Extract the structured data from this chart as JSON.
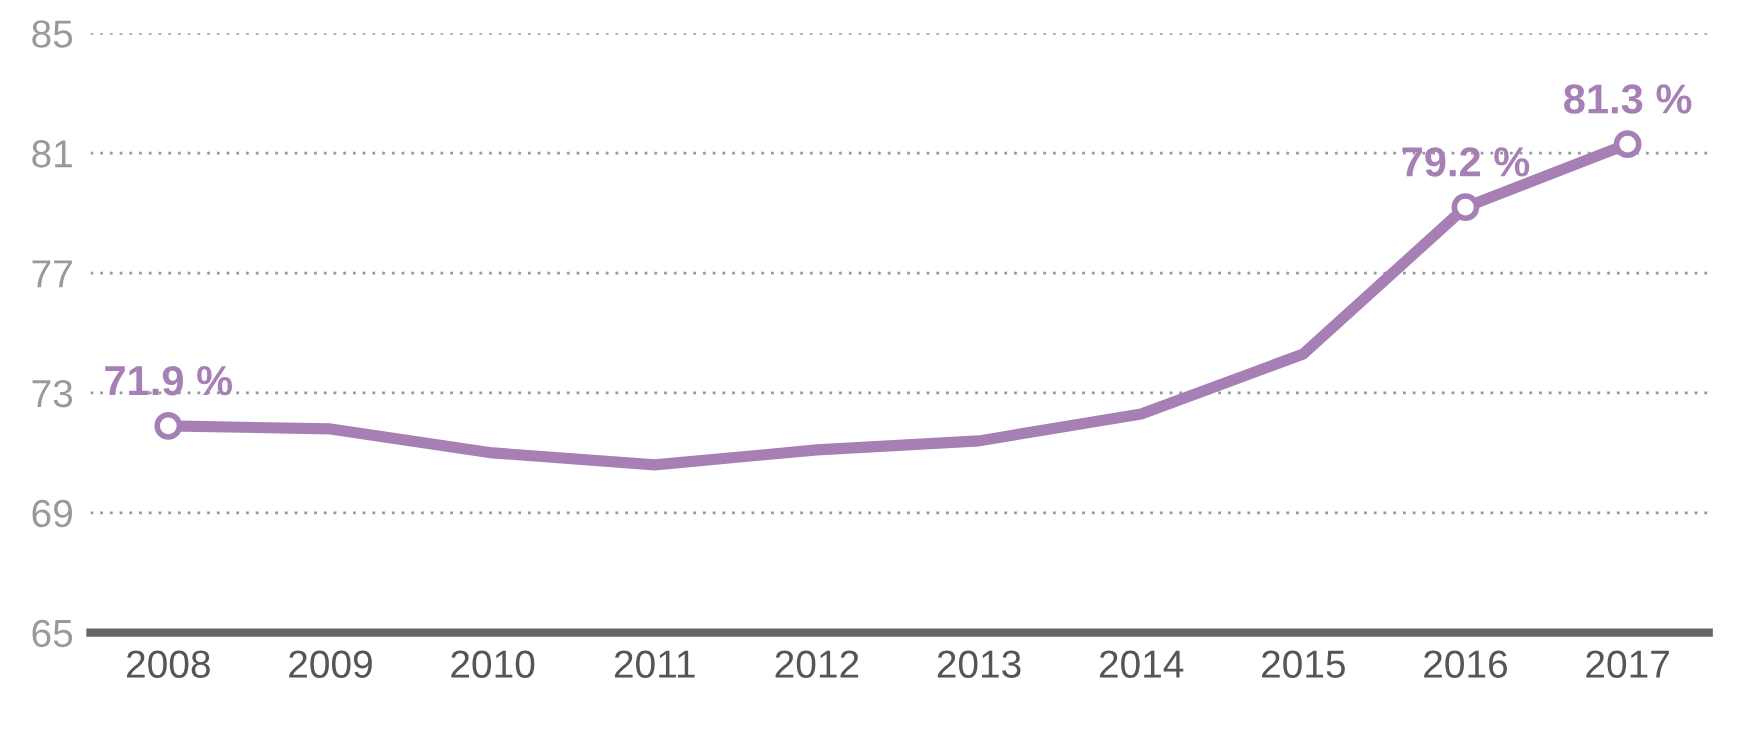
{
  "chart_data": {
    "type": "line",
    "categories": [
      "2008",
      "2009",
      "2010",
      "2011",
      "2012",
      "2013",
      "2014",
      "2015",
      "2016",
      "2017"
    ],
    "series": [
      {
        "color": "#a680b5",
        "values": [
          71.9,
          71.8,
          71.0,
          70.6,
          71.1,
          71.4,
          72.3,
          74.3,
          79.2,
          81.3
        ],
        "value_labels": [
          "71.9 %",
          null,
          null,
          null,
          null,
          null,
          null,
          null,
          "79.2 %",
          "81.3 %"
        ]
      }
    ],
    "ylim": [
      65,
      85
    ],
    "yticks": [
      65,
      69,
      73,
      77,
      81,
      85
    ],
    "grid": "y",
    "line_style": "solid",
    "legend": false
  }
}
